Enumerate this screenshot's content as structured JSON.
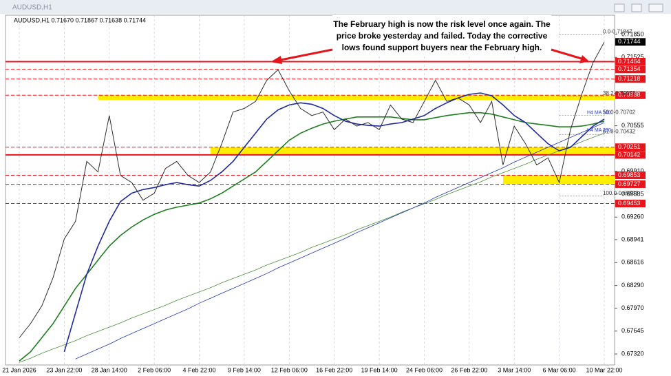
{
  "chart_data": {
    "type": "line",
    "window_title": "AUDUSD,H1",
    "header": "AUDUSD,H1  0.71670 0.71867 0.71638 0.71744",
    "annotation": [
      "The February high is now the risk level once again. The",
      "price broke yesterday and failed. Today the corrective",
      "lows found support buyers near the February high."
    ],
    "categories": [
      "21 Jan 2026",
      null,
      null,
      null,
      "23 Jan 22:00",
      null,
      null,
      null,
      "28 Jan 14:00",
      null,
      null,
      null,
      "2 Feb 06:00",
      null,
      null,
      null,
      "4 Feb 22:00",
      null,
      null,
      null,
      "9 Feb 14:00",
      null,
      null,
      null,
      "12 Feb 06:00",
      null,
      null,
      null,
      "16 Feb 22:00",
      null,
      null,
      null,
      "19 Feb 14:00",
      null,
      null,
      null,
      "24 Feb 06:00",
      null,
      null,
      null,
      "26 Feb 22:00",
      null,
      null,
      null,
      "3 Mar 14:00",
      null,
      null,
      null,
      "6 Mar 06:00",
      null,
      null,
      null,
      "10 Mar 22:00"
    ],
    "series": [
      {
        "color": "#4a8f3a",
        "width": 0.8,
        "values": [
          0.672,
          0.6726,
          0.6733,
          0.6739,
          0.6745,
          0.6751,
          0.6758,
          0.6764,
          0.677,
          0.6776,
          0.6783,
          0.6789,
          0.6795,
          0.6801,
          0.6808,
          0.6814,
          0.682,
          0.6826,
          0.6833,
          0.6839,
          0.6845,
          0.6851,
          0.6858,
          0.6864,
          0.687,
          0.6876,
          0.6883,
          0.6889,
          0.6895,
          0.6901,
          0.6908,
          0.6914,
          0.692,
          0.6926,
          0.6933,
          0.6939,
          0.6945,
          0.6951,
          0.6958,
          0.6964,
          0.697,
          0.6976,
          0.6983,
          0.6989,
          0.6995,
          0.7001,
          0.7008,
          0.7014,
          0.702,
          0.7026,
          0.7033,
          0.7039,
          0.7045
        ]
      },
      {
        "color": "#2236b8",
        "width": 0.8,
        "values": [
          null,
          null,
          null,
          null,
          null,
          0.6725,
          0.6732,
          0.6739,
          0.6746,
          0.6754,
          0.6761,
          0.6768,
          0.6775,
          0.6782,
          0.6789,
          0.6796,
          0.6804,
          0.6811,
          0.6818,
          0.6825,
          0.6832,
          0.6839,
          0.6846,
          0.6854,
          0.6861,
          0.6868,
          0.6875,
          0.6882,
          0.6889,
          0.6896,
          0.6904,
          0.6911,
          0.6918,
          0.6925,
          0.6932,
          0.6939,
          0.6946,
          0.6954,
          0.6961,
          0.6968,
          0.6975,
          0.6982,
          0.6989,
          0.6996,
          0.7004,
          0.7011,
          0.7018,
          0.7025,
          0.7032,
          0.7039,
          0.7046,
          0.7053,
          0.706
        ]
      },
      {
        "color": "#1e7d1e",
        "width": 1.6,
        "values": [
          0.6722,
          0.6735,
          0.6755,
          0.6775,
          0.68,
          0.6825,
          0.6845,
          0.6865,
          0.6885,
          0.69,
          0.6912,
          0.6922,
          0.693,
          0.6936,
          0.694,
          0.6943,
          0.6946,
          0.6952,
          0.696,
          0.697,
          0.698,
          0.699,
          0.7005,
          0.702,
          0.7035,
          0.7045,
          0.7052,
          0.7058,
          0.7062,
          0.7065,
          0.7068,
          0.7068,
          0.7068,
          0.7068,
          0.7066,
          0.7064,
          0.7064,
          0.7067,
          0.707,
          0.7072,
          0.7074,
          0.7074,
          0.7072,
          0.7068,
          0.7064,
          0.706,
          0.7058,
          0.7056,
          0.7054,
          0.7054,
          0.7055,
          0.7058,
          0.7062
        ]
      },
      {
        "color": "#1f2a9e",
        "width": 1.6,
        "values": [
          null,
          null,
          null,
          null,
          0.6735,
          0.679,
          0.6845,
          0.6885,
          0.692,
          0.6948,
          0.696,
          0.6965,
          0.6968,
          0.6972,
          0.6975,
          0.6972,
          0.697,
          0.6978,
          0.699,
          0.7005,
          0.7025,
          0.7045,
          0.7065,
          0.7078,
          0.7085,
          0.7088,
          0.7086,
          0.708,
          0.707,
          0.7062,
          0.7058,
          0.7056,
          0.7055,
          0.7058,
          0.706,
          0.7065,
          0.707,
          0.708,
          0.7088,
          0.7095,
          0.71,
          0.7102,
          0.7098,
          0.7085,
          0.707,
          0.706,
          0.7045,
          0.703,
          0.702,
          0.7025,
          0.704,
          0.7055,
          0.7065
        ]
      },
      {
        "color": "#2b2b2b",
        "width": 1,
        "values": [
          0.6755,
          0.6775,
          0.68,
          0.684,
          0.6895,
          0.692,
          0.7005,
          0.699,
          0.707,
          0.6985,
          0.6975,
          0.695,
          0.696,
          0.6995,
          0.7005,
          0.6985,
          0.6975,
          0.699,
          0.703,
          0.7075,
          0.708,
          0.709,
          0.712,
          0.7135,
          0.7105,
          0.708,
          0.707,
          0.7075,
          0.705,
          0.7065,
          0.7055,
          0.706,
          0.705,
          0.7085,
          0.7065,
          0.706,
          0.709,
          0.712,
          0.709,
          0.7095,
          0.7085,
          0.706,
          0.709,
          0.7,
          0.7055,
          0.703,
          0.7,
          0.701,
          0.6975,
          0.705,
          0.71,
          0.7145,
          0.7174
        ]
      }
    ],
    "ylim": [
      0.67164,
      0.72123
    ],
    "yticks": [
      {
        "value": 0.7185,
        "label": "0.71850"
      },
      {
        "value": 0.71525,
        "label": "0.71525"
      },
      {
        "value": 0.70555,
        "label": "0.70555"
      },
      {
        "value": 0.6991,
        "label": "0.69910"
      },
      {
        "value": 0.69585,
        "label": "0.69585"
      },
      {
        "value": 0.6926,
        "label": "0.69260"
      },
      {
        "value": 0.68941,
        "label": "0.68941"
      },
      {
        "value": 0.68616,
        "label": "0.68616"
      },
      {
        "value": 0.6829,
        "label": "0.68290"
      },
      {
        "value": 0.6797,
        "label": "0.67970"
      },
      {
        "value": 0.67645,
        "label": "0.67645"
      },
      {
        "value": 0.6732,
        "label": "0.67320"
      }
    ],
    "grid": true,
    "zones": [
      {
        "from": 0.7092,
        "to": 0.70988,
        "start": 7
      },
      {
        "from": 0.70142,
        "to": 0.70251,
        "start": 17
      },
      {
        "from": 0.69727,
        "to": 0.69853,
        "start": 43
      }
    ],
    "levels": [
      {
        "price": 0.71464,
        "line": "solid"
      },
      {
        "price": 0.71354,
        "line": "dashed"
      },
      {
        "price": 0.71218,
        "line": "dashed"
      },
      {
        "price": 0.70988,
        "line": "dashed"
      },
      {
        "price": 0.70251,
        "line": "dashed"
      },
      {
        "price": 0.70142,
        "line": "solid"
      },
      {
        "price": 0.69853,
        "line": "dashed"
      },
      {
        "price": 0.69727,
        "line": "dashed"
      },
      {
        "price": 0.69453,
        "line": "dashed"
      }
    ],
    "level_color": "#e8141b",
    "current_price": 0.71744,
    "fib": [
      {
        "value": 0.71847,
        "label": "0.0-0.71847"
      },
      {
        "value": 0.70972,
        "label": "38.2-0.70972"
      },
      {
        "value": 0.70702,
        "label": "50.0-0.70702"
      },
      {
        "value": 0.70432,
        "label": "61.8-0.70432"
      },
      {
        "value": 0.69558,
        "label": "100.0-0.69558"
      }
    ],
    "fib_start": 48,
    "ma_labels": [
      {
        "value": 0.707,
        "label": "H4 MA 100"
      },
      {
        "value": 0.7045,
        "label": "H4 MA 200"
      }
    ]
  }
}
